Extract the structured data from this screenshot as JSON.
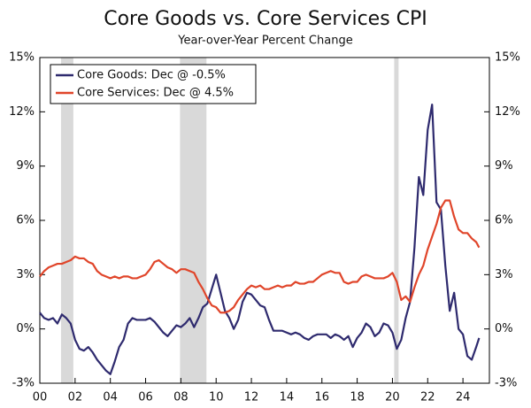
{
  "chart_data": {
    "type": "line",
    "title": "Core Goods vs. Core Services CPI",
    "subtitle": "Year-over-Year Percent Change",
    "x": [
      2000,
      2000.25,
      2000.5,
      2000.75,
      2001,
      2001.25,
      2001.5,
      2001.75,
      2002,
      2002.25,
      2002.5,
      2002.75,
      2003,
      2003.25,
      2003.5,
      2003.75,
      2004,
      2004.25,
      2004.5,
      2004.75,
      2005,
      2005.25,
      2005.5,
      2005.75,
      2006,
      2006.25,
      2006.5,
      2006.75,
      2007,
      2007.25,
      2007.5,
      2007.75,
      2008,
      2008.25,
      2008.5,
      2008.75,
      2009,
      2009.25,
      2009.5,
      2009.75,
      2010,
      2010.25,
      2010.5,
      2010.75,
      2011,
      2011.25,
      2011.5,
      2011.75,
      2012,
      2012.25,
      2012.5,
      2012.75,
      2013,
      2013.25,
      2013.5,
      2013.75,
      2014,
      2014.25,
      2014.5,
      2014.75,
      2015,
      2015.25,
      2015.5,
      2015.75,
      2016,
      2016.25,
      2016.5,
      2016.75,
      2017,
      2017.25,
      2017.5,
      2017.75,
      2018,
      2018.25,
      2018.5,
      2018.75,
      2019,
      2019.25,
      2019.5,
      2019.75,
      2020,
      2020.25,
      2020.5,
      2020.75,
      2021,
      2021.25,
      2021.5,
      2021.75,
      2022,
      2022.25,
      2022.5,
      2022.75,
      2023,
      2023.25,
      2023.5,
      2023.75,
      2024,
      2024.25,
      2024.5,
      2024.75,
      2024.917
    ],
    "series": [
      {
        "name": "Core Goods: Dec @ -0.5%",
        "color": "#2e2a6e",
        "values": [
          0.9,
          0.6,
          0.5,
          0.6,
          0.3,
          0.8,
          0.6,
          0.3,
          -0.6,
          -1.1,
          -1.2,
          -1.0,
          -1.3,
          -1.7,
          -2.0,
          -2.3,
          -2.5,
          -1.8,
          -1.0,
          -0.6,
          0.3,
          0.6,
          0.5,
          0.5,
          0.5,
          0.6,
          0.4,
          0.1,
          -0.2,
          -0.4,
          -0.1,
          0.2,
          0.1,
          0.3,
          0.6,
          0.1,
          0.6,
          1.2,
          1.4,
          2.2,
          3.0,
          2.0,
          1.0,
          0.6,
          0.0,
          0.5,
          1.5,
          2.0,
          1.9,
          1.6,
          1.3,
          1.2,
          0.5,
          -0.1,
          -0.1,
          -0.1,
          -0.2,
          -0.3,
          -0.2,
          -0.3,
          -0.5,
          -0.6,
          -0.4,
          -0.3,
          -0.3,
          -0.3,
          -0.5,
          -0.3,
          -0.4,
          -0.6,
          -0.4,
          -1.0,
          -0.5,
          -0.2,
          0.3,
          0.1,
          -0.4,
          -0.2,
          0.3,
          0.2,
          -0.2,
          -1.1,
          -0.6,
          0.6,
          1.5,
          4.5,
          8.4,
          7.4,
          11.0,
          12.4,
          7.0,
          6.6,
          3.5,
          1.0,
          2.0,
          0.0,
          -0.3,
          -1.5,
          -1.7,
          -1.0,
          -0.5
        ]
      },
      {
        "name": "Core Services: Dec @ 4.5%",
        "color": "#e0452a",
        "values": [
          2.9,
          3.2,
          3.4,
          3.5,
          3.6,
          3.6,
          3.7,
          3.8,
          4.0,
          3.9,
          3.9,
          3.7,
          3.6,
          3.2,
          3.0,
          2.9,
          2.8,
          2.9,
          2.8,
          2.9,
          2.9,
          2.8,
          2.8,
          2.9,
          3.0,
          3.3,
          3.7,
          3.8,
          3.6,
          3.4,
          3.3,
          3.1,
          3.3,
          3.3,
          3.2,
          3.1,
          2.6,
          2.2,
          1.7,
          1.3,
          1.2,
          0.9,
          0.9,
          1.0,
          1.2,
          1.6,
          1.9,
          2.2,
          2.4,
          2.3,
          2.4,
          2.2,
          2.2,
          2.3,
          2.4,
          2.3,
          2.4,
          2.4,
          2.6,
          2.5,
          2.5,
          2.6,
          2.6,
          2.8,
          3.0,
          3.1,
          3.2,
          3.1,
          3.1,
          2.6,
          2.5,
          2.6,
          2.6,
          2.9,
          3.0,
          2.9,
          2.8,
          2.8,
          2.8,
          2.9,
          3.1,
          2.6,
          1.6,
          1.8,
          1.5,
          2.3,
          3.0,
          3.5,
          4.4,
          5.1,
          5.8,
          6.7,
          7.1,
          7.1,
          6.2,
          5.5,
          5.3,
          5.3,
          5.0,
          4.8,
          4.5
        ]
      }
    ],
    "shaded_periods": [
      [
        2001.2,
        2001.9
      ],
      [
        2007.95,
        2009.45
      ],
      [
        2020.1,
        2020.35
      ]
    ],
    "shade_color": "#d9d9d9",
    "xlim": [
      2000,
      2025.5
    ],
    "xticks": [
      {
        "value": 2000,
        "label": "00"
      },
      {
        "value": 2002,
        "label": "02"
      },
      {
        "value": 2004,
        "label": "04"
      },
      {
        "value": 2006,
        "label": "06"
      },
      {
        "value": 2008,
        "label": "08"
      },
      {
        "value": 2010,
        "label": "10"
      },
      {
        "value": 2012,
        "label": "12"
      },
      {
        "value": 2014,
        "label": "14"
      },
      {
        "value": 2016,
        "label": "16"
      },
      {
        "value": 2018,
        "label": "18"
      },
      {
        "value": 2020,
        "label": "20"
      },
      {
        "value": 2022,
        "label": "22"
      },
      {
        "value": 2024,
        "label": "24"
      }
    ],
    "ylim": [
      -3,
      15
    ],
    "yticks": [
      {
        "value": -3,
        "label": "-3%"
      },
      {
        "value": 0,
        "label": "0%"
      },
      {
        "value": 3,
        "label": "3%"
      },
      {
        "value": 6,
        "label": "6%"
      },
      {
        "value": 9,
        "label": "9%"
      },
      {
        "value": 12,
        "label": "12%"
      },
      {
        "value": 15,
        "label": "15%"
      }
    ],
    "legend": "upper left",
    "grid": false
  }
}
